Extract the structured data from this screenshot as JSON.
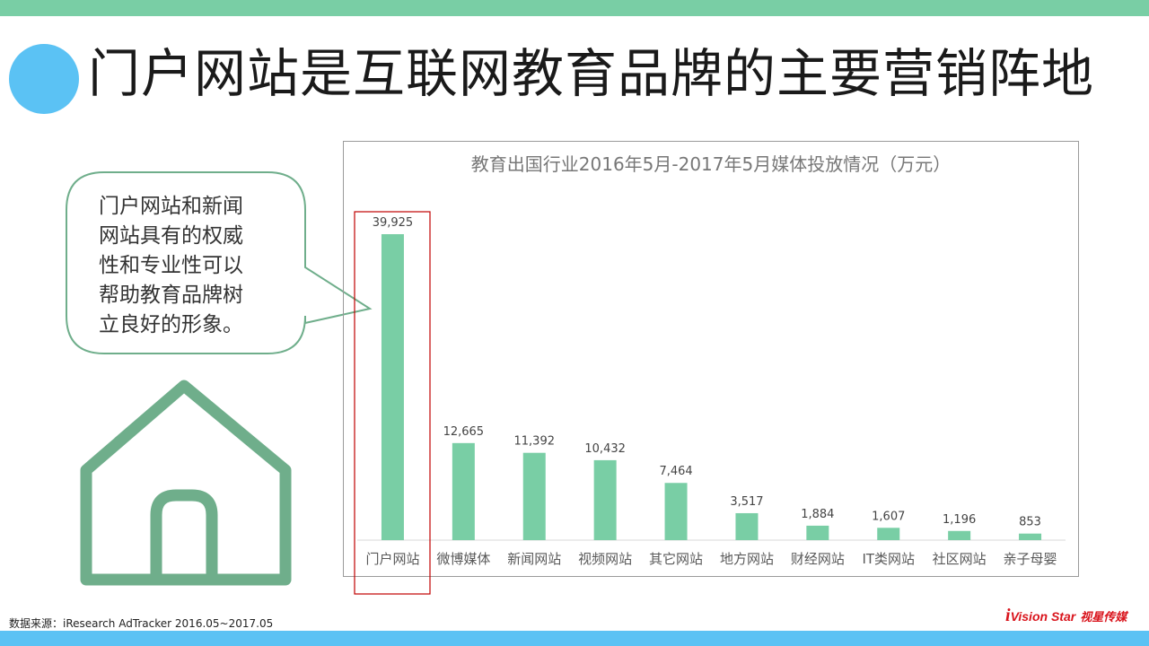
{
  "page": {
    "title": "门户网站是互联网教育品牌的主要营销阵地",
    "callout": {
      "lines": [
        "门户网站和新闻",
        "网站具有的权威",
        "性和专业性可以",
        "帮助教育品牌树",
        "立良好的形象。"
      ]
    },
    "source": "数据来源：iResearch AdTracker 2016.05~2017.05",
    "logo": {
      "mark": "i",
      "text": "Vision Star",
      "cn": "视星传媒"
    },
    "colors": {
      "top_band": "#79cea5",
      "bottom_band": "#5bc2f4",
      "bar": "#79cea5",
      "highlight": "#c00000",
      "house": "#6fae8b"
    },
    "icons": {
      "house": "house-icon",
      "title_dot": "circle-bullet"
    }
  },
  "chart_data": {
    "type": "bar",
    "title": "教育出国行业2016年5月-2017年5月媒体投放情况（万元）",
    "categories": [
      "门户网站",
      "微博媒体",
      "新闻网站",
      "视频网站",
      "其它网站",
      "地方网站",
      "财经网站",
      "IT类网站",
      "社区网站",
      "亲子母婴"
    ],
    "values": [
      39925,
      12665,
      11392,
      10432,
      7464,
      3517,
      1884,
      1607,
      1196,
      853
    ],
    "data_labels": [
      "39,925",
      "12,665",
      "11,392",
      "10,432",
      "7,464",
      "3,517",
      "1,884",
      "1,607",
      "1,196",
      "853"
    ],
    "ylim": [
      0,
      40000
    ],
    "grid": false,
    "legend": "none",
    "highlighted_category": "门户网站"
  }
}
